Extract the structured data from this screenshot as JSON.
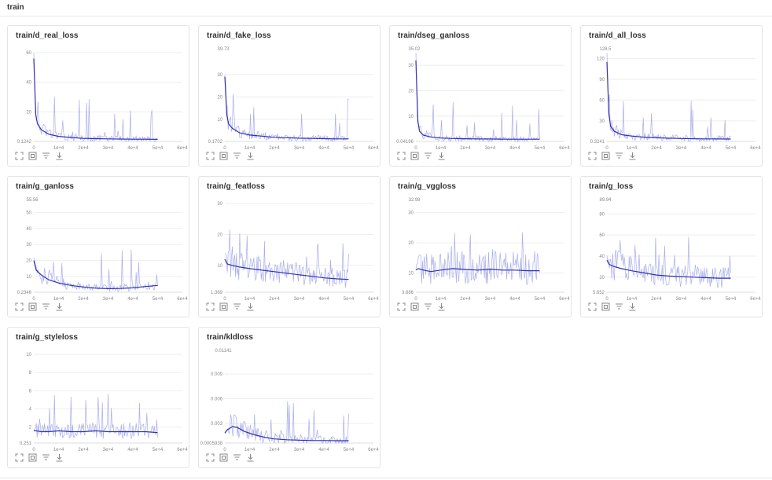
{
  "section": {
    "title": "train"
  },
  "toolbar_icons": [
    "expand-icon",
    "fit-icon",
    "filter-icon",
    "download-icon"
  ],
  "colors": {
    "raw": "#9aa0e6",
    "smooth": "#2f2fb8",
    "grid": "#eeeeee",
    "tick": "#888888"
  },
  "chart_data": [
    {
      "type": "line",
      "title": "train/d_real_loss",
      "xticks": [
        "0",
        "1e+4",
        "2e+4",
        "3e+4",
        "4e+4",
        "5e+4",
        "6e+4"
      ],
      "xlim": [
        0,
        60000
      ],
      "yticks": [
        20,
        40,
        60
      ],
      "ymin_label": "0.1242",
      "ymax_label": "",
      "ylim": [
        0.1242,
        60
      ],
      "series": [
        {
          "x": [
            0,
            800,
            1500,
            3000,
            6000,
            10000,
            15000,
            20000,
            25000,
            30000,
            35000,
            40000,
            45000,
            50000
          ],
          "y": [
            56,
            18,
            12,
            8,
            5,
            3.5,
            2.8,
            2.2,
            2,
            1.8,
            1.7,
            1.6,
            1.6,
            1.5
          ]
        }
      ]
    },
    {
      "type": "line",
      "title": "train/d_fake_loss",
      "xticks": [
        "0",
        "1e+4",
        "2e+4",
        "3e+4",
        "4e+4",
        "5e+4",
        "6e+4"
      ],
      "xlim": [
        0,
        60000
      ],
      "yticks": [
        10,
        20,
        30
      ],
      "ymin_label": "0.1702",
      "ymax_label": "39.73",
      "ylim": [
        0.1702,
        39.73
      ],
      "series": [
        {
          "x": [
            0,
            800,
            1500,
            3000,
            6000,
            10000,
            15000,
            20000,
            25000,
            30000,
            35000,
            40000,
            45000,
            50000
          ],
          "y": [
            29,
            12,
            8,
            6,
            4,
            3,
            2.5,
            2,
            1.8,
            1.6,
            1.5,
            1.4,
            1.3,
            1.3
          ]
        }
      ]
    },
    {
      "type": "line",
      "title": "train/dseg_ganloss",
      "xticks": [
        "0",
        "1e+4",
        "2e+4",
        "3e+4",
        "4e+4",
        "5e+4",
        "6e+4"
      ],
      "xlim": [
        0,
        60000
      ],
      "yticks": [
        10,
        20,
        30
      ],
      "ymin_label": "0.04196",
      "ymax_label": "35.02",
      "ylim": [
        0.04196,
        35.02
      ],
      "series": [
        {
          "x": [
            0,
            800,
            1500,
            3000,
            6000,
            10000,
            15000,
            20000,
            25000,
            30000,
            35000,
            40000,
            45000,
            50000
          ],
          "y": [
            32,
            8,
            4,
            2.5,
            1.8,
            1.4,
            1.2,
            1.1,
            1,
            1,
            0.9,
            0.9,
            0.9,
            0.9
          ]
        }
      ]
    },
    {
      "type": "line",
      "title": "train/d_all_loss",
      "xticks": [
        "0",
        "1e+4",
        "2e+4",
        "3e+4",
        "4e+4",
        "5e+4",
        "6e+4"
      ],
      "xlim": [
        0,
        60000
      ],
      "yticks": [
        30,
        60,
        90,
        120
      ],
      "ymin_label": "0.3241",
      "ymax_label": "128.5",
      "ylim": [
        0.3241,
        128.5
      ],
      "series": [
        {
          "x": [
            0,
            800,
            1500,
            3000,
            6000,
            10000,
            15000,
            20000,
            25000,
            30000,
            35000,
            40000,
            45000,
            50000
          ],
          "y": [
            115,
            40,
            22,
            15,
            10,
            8,
            6.5,
            5.5,
            5,
            4.5,
            4.2,
            4,
            3.8,
            3.7
          ]
        }
      ]
    },
    {
      "type": "line",
      "title": "train/g_ganloss",
      "xticks": [
        "0",
        "1e+4",
        "2e+4",
        "3e+4",
        "4e+4",
        "5e+4",
        "6e+4"
      ],
      "xlim": [
        0,
        60000
      ],
      "yticks": [
        10,
        20,
        30,
        40,
        50
      ],
      "ymin_label": "0.2346",
      "ymax_label": "55.56",
      "ylim": [
        0.2346,
        55.56
      ],
      "series": [
        {
          "x": [
            0,
            1000,
            3000,
            6000,
            10000,
            15000,
            20000,
            25000,
            30000,
            35000,
            40000,
            45000,
            50000
          ],
          "y": [
            20,
            14,
            11,
            8,
            6,
            4.5,
            3.5,
            2.8,
            2.5,
            2.6,
            3,
            3.8,
            4.5
          ]
        }
      ]
    },
    {
      "type": "line",
      "title": "train/g_featloss",
      "xticks": [
        "0",
        "1e+4",
        "2e+4",
        "3e+4",
        "4e+4",
        "5e+4",
        "6e+4"
      ],
      "xlim": [
        0,
        60000
      ],
      "yticks": [
        10,
        20,
        30
      ],
      "ymin_label": "1.369",
      "ymax_label": "",
      "ylim": [
        1.369,
        30
      ],
      "series": [
        {
          "x": [
            0,
            1000,
            3000,
            6000,
            10000,
            15000,
            20000,
            25000,
            30000,
            35000,
            40000,
            45000,
            50000
          ],
          "y": [
            12,
            10.5,
            10,
            9.5,
            9,
            8.5,
            8,
            7.5,
            7,
            6.5,
            6,
            5.7,
            5.5
          ]
        }
      ]
    },
    {
      "type": "line",
      "title": "train/g_vggloss",
      "xticks": [
        "0",
        "1e+4",
        "2e+4",
        "3e+4",
        "4e+4",
        "5e+4",
        "6e+4"
      ],
      "xlim": [
        0,
        60000
      ],
      "yticks": [
        10,
        20,
        30
      ],
      "ymin_label": "3.686",
      "ymax_label": "32.98",
      "ylim": [
        3.686,
        32.98
      ],
      "series": [
        {
          "x": [
            0,
            1000,
            3000,
            6000,
            10000,
            15000,
            20000,
            25000,
            30000,
            35000,
            40000,
            45000,
            50000
          ],
          "y": [
            11,
            11.5,
            11,
            10.5,
            11,
            11.5,
            11.2,
            11,
            11.3,
            11,
            11,
            10.8,
            10.8
          ]
        }
      ]
    },
    {
      "type": "line",
      "title": "train/g_loss",
      "xticks": [
        "0",
        "1e+4",
        "2e+4",
        "3e+4",
        "4e+4",
        "5e+4",
        "6e+4"
      ],
      "xlim": [
        0,
        60000
      ],
      "yticks": [
        20,
        40,
        60,
        80
      ],
      "ymin_label": "5.652",
      "ymax_label": "89.94",
      "ylim": [
        5.652,
        89.94
      ],
      "series": [
        {
          "x": [
            0,
            1000,
            3000,
            6000,
            10000,
            15000,
            20000,
            25000,
            30000,
            35000,
            40000,
            45000,
            50000
          ],
          "y": [
            36,
            32,
            30,
            28,
            26,
            24,
            22,
            21,
            20.5,
            20,
            19.5,
            19,
            19
          ]
        }
      ]
    },
    {
      "type": "line",
      "title": "train/g_styleloss",
      "xticks": [
        "0",
        "1e+4",
        "2e+4",
        "3e+4",
        "4e+4",
        "5e+4",
        "6e+4"
      ],
      "xlim": [
        0,
        60000
      ],
      "yticks": [
        2,
        4,
        6,
        8,
        10
      ],
      "ymin_label": "0.251",
      "ymax_label": "",
      "ylim": [
        0.251,
        10
      ],
      "series": [
        {
          "x": [
            0,
            1000,
            3000,
            6000,
            10000,
            15000,
            20000,
            25000,
            30000,
            35000,
            40000,
            45000,
            50000
          ],
          "y": [
            1.6,
            1.6,
            1.5,
            1.5,
            1.6,
            1.5,
            1.5,
            1.6,
            1.5,
            1.5,
            1.5,
            1.5,
            1.4
          ]
        }
      ]
    },
    {
      "type": "line",
      "title": "train/kldloss",
      "xticks": [
        "0",
        "1e+4",
        "2e+4",
        "3e+4",
        "4e+4",
        "5e+4",
        "6e+4"
      ],
      "xlim": [
        0,
        60000
      ],
      "yticks": [
        0.003,
        0.006,
        0.009
      ],
      "ymin_label": "0.0005938",
      "ymax_label": "0.01141",
      "ylim": [
        0.0005938,
        0.01141
      ],
      "series": [
        {
          "x": [
            0,
            1000,
            3000,
            5000,
            8000,
            12000,
            16000,
            20000,
            25000,
            30000,
            35000,
            40000,
            45000,
            50000
          ],
          "y": [
            0.0018,
            0.0022,
            0.0026,
            0.0025,
            0.002,
            0.0016,
            0.0013,
            0.0011,
            0.001,
            0.00095,
            0.0009,
            0.0009,
            0.00088,
            0.00088
          ]
        }
      ]
    }
  ]
}
